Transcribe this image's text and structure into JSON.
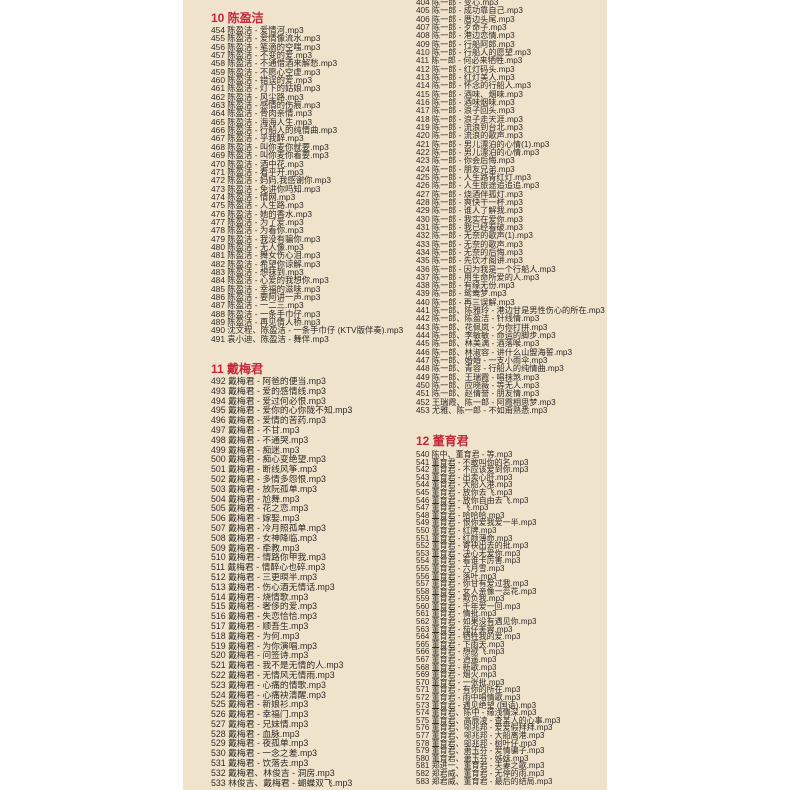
{
  "sections": [
    {
      "title": "10 陈盈洁",
      "items": [
        "454 陈盈洁 - 爱情河.mp3",
        "455 陈盈洁 - 爱情像流水.mp3",
        "456 陈盈洁 - 笔滴的空嗤.mp3",
        "457 陈盈洁 - 不变的爱.mp3",
        "458 陈盈洁 - 不通借酒来解愁.mp3",
        "459 陈盈洁 - 不愿心空虚.mp3",
        "460 陈盈洁 - 错误的爱.mp3",
        "461 陈盈洁 - 灯下的姑娘.mp3",
        "462 陈盈洁 - 风尘路.mp3",
        "463 陈盈洁 - 感情的伤痕.mp3",
        "464 陈盈洁 - 骨肉亲情.mp3",
        "465 陈盈洁 - 海海人生.mp3",
        "466 陈盈洁 - 行船人的纯情曲.mp3",
        "467 陈盈洁 - 乎我醉.mp3",
        "468 陈盈洁 - 叫你麦你就要.mp3",
        "469 陈盈洁 - 叫你麦你着要.mp3",
        "470 陈盈洁 - 酒中花.mp3",
        "471 陈盈洁 - 看乎开.mp3",
        "472 陈盈洁 - 妈妈,我感谢你.mp3",
        "473 陈盈洁 - 免讲你吗知.mp3",
        "474 陈盈洁 - 情网.mp3",
        "475 陈盈洁 - 人生路.mp3",
        "476 陈盈洁 - 她的香水.mp3",
        "477 陈盈洁 - 为了爱.mp3",
        "478 陈盈洁 - 为着你.mp3",
        "479 陈盈洁 - 我没有骗你.mp3",
        "480 陈盈洁 - 无人像.mp3",
        "481 陈盈洁 - 舞女伤心泪.mp3",
        "482 陈盈洁 - 希望你谅解.mp3",
        "483 陈盈洁 - 想抹到.mp3",
        "484 陈盈洁 - 心爱的我想你.mp3",
        "485 陈盈洁 - 幸福的滋味.mp3",
        "486 陈盈洁 - 要阿讲一声.mp3",
        "487 陈盈洁 - 一二三.mp3",
        "488 陈盈洁 - 一条手巾仔.mp3",
        "489 陈盈洁 - 再见情人桥.mp3",
        "490 沈文程、陈盈洁 - 一条手巾仔 (KTV版伴奏).mp3",
        "491 袁小迪、陈盈洁 - 舞伴.mp3"
      ]
    },
    {
      "title": "11 戴梅君",
      "items": [
        "492 戴梅君 - 阿爸的便当.mp3",
        "493 戴梅君 - 爱的感情线.mp3",
        "494 戴梅君 - 爱过何必恨.mp3",
        "495 戴梅君 - 爱你的心你陇不知.mp3",
        "496 戴梅君 - 爱情的苦药.mp3",
        "497 戴梅君 - 不甘.mp3",
        "498 戴梅君 - 不通哭.mp3",
        "499 戴梅君 - 痴迷.mp3",
        "500 戴梅君 - 痴心变绝望.mp3",
        "501 戴梅君 - 断线风筝.mp3",
        "502 戴梅君 - 多情多怨恨.mp3",
        "503 戴梅君 - 放阮孤单.mp3",
        "504 戴梅君 - 尬舞.mp3",
        "505 戴梅君 - 花之恋.mp3",
        "506 戴梅君 - 嫁娶.mp3",
        "507 戴梅君 - 冷月照孤单.mp3",
        "508 戴梅君 - 女神降临.mp3",
        "509 戴梅君 - 牵教.mp3",
        "510 戴梅君 - 情路你甲我.mp3",
        "511 戴梅君 - 情醉心也碎.mp3",
        "512 戴梅君 - 三更暝半.mp3",
        "513 戴梅君 - 伤心酒无情话.mp3",
        "514 戴梅君 - 烧情歌.mp3",
        "515 戴梅君 - 奢侈的爱.mp3",
        "516 戴梅君 - 失恋恰恰.mp3",
        "517 戴梅君 - 顺吾生.mp3",
        "518 戴梅君 - 为何.mp3",
        "519 戴梅君 - 为你演唱.mp3",
        "520 戴梅君 - 问签诗.mp3",
        "521 戴梅君 - 我不是无情的人.mp3",
        "522 戴梅君 - 无情风无情雨.mp3",
        "523 戴梅君 - 心痛的情歌.mp3",
        "524 戴梅君 - 心痛袂清醒.mp3",
        "525 戴梅君 - 新娘衫.mp3",
        "526 戴梅君 - 幸福门.mp3",
        "527 戴梅君 - 兄妹情.mp3",
        "528 戴梅君 - 血脉.mp3",
        "529 戴梅君 - 夜孤单.mp3",
        "530 戴梅君 - 一念之差.mp3",
        "531 戴梅君 - 饮落去.mp3",
        "532 戴梅君、林俊吉 - 洞房.mp3",
        "533 林俊吉、戴梅君 - 蝴蝶双飞.mp3"
      ]
    },
    {
      "title": "",
      "items": [
        "404 陈一郎 - 变心.mp3",
        "405 陈一郎 - 成功靠自己.mp3",
        "406 陈一郎 - 厝边头尾.mp3",
        "407 陈一郎 - 歹命子.mp3",
        "408 陈一郎 - 港边恋情.mp3",
        "409 陈一郎 - 行船阿郎.mp3",
        "410 陈一郎 - 行船人的愿望.mp3",
        "411 陈一郎 - 何必来牺牲.mp3",
        "412 陈一郎 - 红灯码头.mp3",
        "413 陈一郎 - 红灯美人.mp3",
        "414 陈一郎 - 怀念的行船人.mp3",
        "415 陈一郎 - 酒味、烟味.mp3",
        "416 陈一郎 - 酒味烟味.mp3",
        "417 陈一郎 - 浪子回头.mp3",
        "418 陈一郎 - 浪子走天涯.mp3",
        "419 陈一郎 - 流浪到台北.mp3",
        "420 陈一郎 - 流浪的歌声.mp3",
        "421 陈一郎 - 男儿漂泊的心情(1).mp3",
        "422 陈一郎 - 男儿漂泊的心情.mp3",
        "423 陈一郎 - 你会后悔.mp3",
        "424 陈一郎 - 朋友兄弟.mp3",
        "425 陈一郎 - 人生路青红灯.mp3",
        "426 陈一郎 - 人生旅途追追追.mp3",
        "427 陈一郎 - 烧酒伴孤灯.mp3",
        "428 陈一郎 - 爽快干一杯.mp3",
        "429 陈一郎 - 谁人了解我.mp3",
        "430 陈一郎 - 我实在爱你.mp3",
        "431 陈一郎 - 我已经看破.mp3",
        "432 陈一郎 - 无奈的歌声(1).mp3",
        "433 陈一郎 - 无奈的歌声.mp3",
        "434 陈一郎 - 无奈的后悔.mp3",
        "435 陈一郎 - 先饮才阁讲.mp3",
        "436 陈一郎 - 因为我是一个行船人.mp3",
        "437 陈一郎 - 用生命所爱的人.mp3",
        "438 陈一郎 - 有缘无份.mp3",
        "439 陈一郎 - 鸳鸯梦.mp3",
        "440  陈一郎 - 再三误解.mp3",
        "441 陈一郎、陈雅玲 - 港边甘是男性伤心的所在.mp3",
        "442 陈一郎、陈盈洁 - 针线情.mp3",
        "443 陈一郎、花佩岚 - 为你打拼.mp3",
        "444 陈一郎、李敏敏 - 命运的脚步.mp3",
        "445 陈一郎、林美满 - 酒落喉.mp3",
        "446 陈一郎、林淑容 - 讲什么山盟海誓.mp3",
        "447 陈一郎、婚婚 - 一支小雨伞.mp3",
        "448 陈一郎、青容 - 行船人的纯情曲.mp3",
        "449 陈一郎、王瑞霞 - 唱抹煞.mp3",
        "450 陈一郎、应晓薇 - 等无人.mp3",
        "451 陈一郎、赵倩誉 - 朋友情.mp3",
        "452 王瑞霞、陈一郎 - 阿霞相思梦.mp3",
        "453 尤雅、陈一郎 - 不如甭熟悉.mp3"
      ]
    },
    {
      "title": "12 董育君",
      "items": [
        "540 陈中、董育君 - 等.mp3",
        "541 董育君 - 不敢叫你的名.mp3",
        "542 董育君 - 不应该爱到你.mp3",
        "543 董育君 - 出卖心肝.mp3",
        "544 董育君 - 大船入港.mp3",
        "545 董育君 - 放你去飞.mp3",
        "546 董育君 - 放你自由去飞.mp3",
        "547 董育君 - 飞.mp3",
        "548 董育君 - 哈哈哈.mp3",
        "549 董育君 - 恨你爱我爱一半.mp3",
        "550 董育君 - 红牌.mp3",
        "551 董育君 - 红颜薄命.mp3",
        "552 董育君 - 寄袂出去的批.mp3",
        "553 董育君 - 决心无爱你.mp3",
        "554 董育君 - 看谁卡厉害.mp3",
        "555 董育君 - 六月雪.mp3",
        "556 董育君 - 落叶.mp3",
        "557 董育君 - 你甘有爱过我.mp3",
        "558 董育君 - 女人亲像一蕊花.mp3",
        "559 董育君 - 欺负我.mp3",
        "560 董育君 - 千年爱一回.mp3",
        "561 董育君 - 情批.mp3",
        "562 董育君 - 如果没有遇见你.mp3",
        "563 董育君 - 茄仔芙蓉.mp3",
        "564 董育君 - 牺牲我的爱.mp3",
        "565 董育君 - 下雨天.mp3",
        "566 董育君 - 想欲飞.mp3",
        "567 董育君 - 逍遥.mp3",
        "568 董育君 - 新歌.mp3",
        "569 董育君 - 烟火.mp3",
        "570 董育君 - 一张批.mp3",
        "571 董育君 - 有你的所在.mp3",
        "572 董育君 - 雨中唱情歌.mp3",
        "573 董育君 - 遇见绝望 (国语).mp3",
        "574 董育君、陈中 - 缘浅情深.mp3",
        "575 董育君、高辰凌 - 查某人的心事.mp3",
        "576 董育君、邬兆邦 - 爱爱假拜拜.mp3",
        "577 董育君、邬兆邦 - 大船离港.mp3",
        "578 董育君、邬兆邦 - 树叶仔.mp3",
        "579 董育君、萧玉芬 - 爱情骗子.mp3",
        "580 董育君、萧玉芬 - 姊妹.mp3",
        "581 郑进一、董育君 - 夫妻之歌.mp3",
        "582 郑君威、董育君 - 无停的雨.mp3",
        "583 郑君威、董育君 - 最后的结局.mp3"
      ]
    }
  ]
}
